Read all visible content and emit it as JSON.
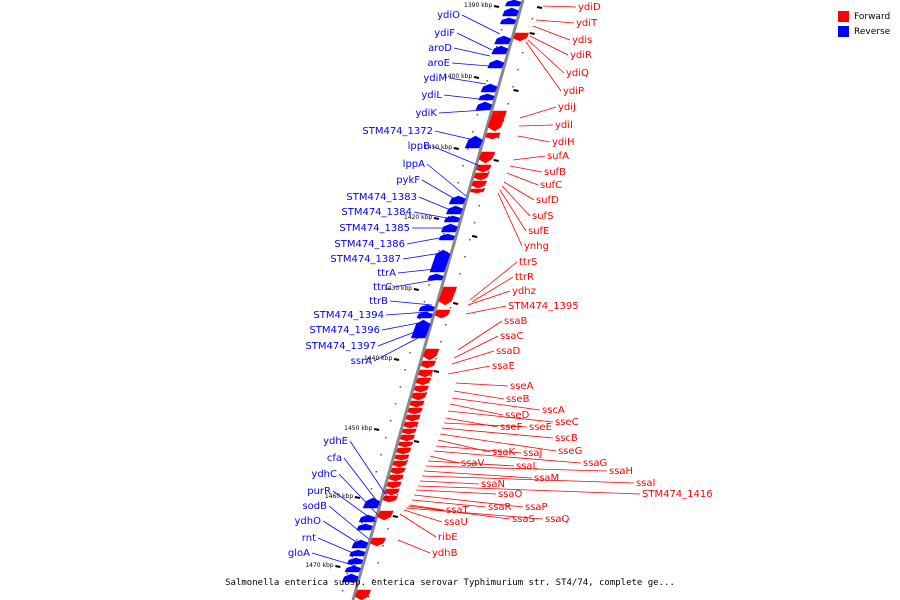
{
  "legend": {
    "forward_label": "Forward",
    "reverse_label": "Reverse",
    "forward_color": "#ff0000",
    "reverse_color": "#0000ff"
  },
  "caption": "Salmonella enterica subsp. enterica serovar Typhimurium str. ST4/74, complete ge...",
  "kbp_ticks": [
    "1390 kbp",
    "1400 kbp",
    "1410 kbp",
    "1420 kbp",
    "1430 kbp",
    "1440 kbp",
    "1450 kbp",
    "1460 kbp",
    "1470 kbp"
  ],
  "reverse_genes": [
    "ydiO",
    "ydiF",
    "aroD",
    "aroE",
    "ydiM",
    "ydiL",
    "ydiK",
    "STM474_1372",
    "lppB",
    "lppA",
    "pykF",
    "STM474_1383",
    "STM474_1384",
    "STM474_1385",
    "STM474_1386",
    "STM474_1387",
    "ttrA",
    "ttrC",
    "ttrB",
    "STM474_1394",
    "STM474_1396",
    "STM474_1397",
    "ssrA",
    "ydhE",
    "cfa",
    "ydhC",
    "purR",
    "sodB",
    "ydhO",
    "rnt",
    "gloA"
  ],
  "forward_genes": [
    "ydiD",
    "ydiT",
    "ydis",
    "ydiR",
    "ydiQ",
    "ydiP",
    "ydiJ",
    "ydiI",
    "ydiH",
    "sufA",
    "sufB",
    "sufC",
    "sufD",
    "sufS",
    "sufE",
    "ynhg",
    "ttrS",
    "ttrR",
    "ydhz",
    "STM474_1395",
    "ssaB",
    "ssaC",
    "ssaD",
    "ssaE",
    "sseA",
    "sseB",
    "sscA",
    "sseD",
    "sseC",
    "sseF",
    "sseE",
    "sscB",
    "sseG",
    "ssaK",
    "ssaJ",
    "ssaG",
    "ssaV",
    "ssaL",
    "ssaH",
    "ssaM",
    "ssaI",
    "ssaN",
    "STM474_1416",
    "ssaO",
    "ssaP",
    "ssaR",
    "ssaT",
    "ssaS",
    "ssaQ",
    "ssaU",
    "ribE",
    "ydhB"
  ]
}
